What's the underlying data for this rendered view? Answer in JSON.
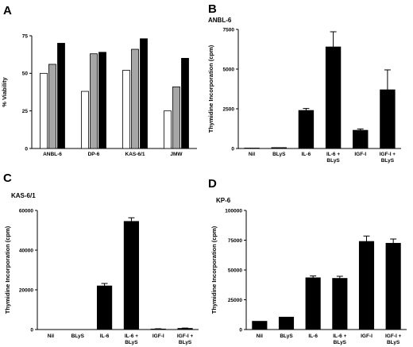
{
  "panels": {
    "A": {
      "letter": "A"
    },
    "B": {
      "letter": "B",
      "subtitle": "ANBL-6"
    },
    "C": {
      "letter": "C",
      "subtitle": "KAS-6/1"
    },
    "D": {
      "letter": "D",
      "subtitle": "KP-6"
    }
  },
  "chart_data": [
    {
      "panel": "A",
      "type": "bar",
      "ylabel": "% Viability",
      "ylim": [
        0,
        75
      ],
      "yticks": [
        0,
        25,
        50,
        75
      ],
      "categories": [
        "ANBL-6",
        "DP-6",
        "KAS-6/1",
        "JMW"
      ],
      "series_colors": [
        "#ffffff",
        "#a6a6a6",
        "#000000"
      ],
      "series": [
        {
          "values": [
            50,
            38,
            52,
            25
          ]
        },
        {
          "values": [
            56,
            63,
            66,
            41
          ]
        },
        {
          "values": [
            70,
            64,
            73,
            60
          ]
        }
      ]
    },
    {
      "panel": "B",
      "type": "bar",
      "ylabel": "Thymidine Incorporation (cpm)",
      "ylim": [
        0,
        7500
      ],
      "yticks": [
        0,
        2500,
        5000,
        7500
      ],
      "categories": [
        [
          "Nil"
        ],
        [
          "BLyS"
        ],
        [
          "IL-6"
        ],
        [
          "IL-6 +",
          "BLyS"
        ],
        [
          "IGF-I"
        ],
        [
          "IGF-I +",
          "BLyS"
        ]
      ],
      "values": [
        30,
        60,
        2400,
        6400,
        1150,
        3700
      ],
      "errors": [
        0,
        0,
        120,
        950,
        80,
        1250
      ]
    },
    {
      "panel": "C",
      "type": "bar",
      "ylabel": "Thymidine Incorporation (cpm)",
      "ylim": [
        0,
        60000
      ],
      "yticks": [
        0,
        20000,
        40000,
        60000
      ],
      "categories": [
        [
          "Nil"
        ],
        [
          "BLyS"
        ],
        [
          "IL-6"
        ],
        [
          "IL-6 +",
          "BLyS"
        ],
        [
          "IGF-I"
        ],
        [
          "IGF-I +",
          "BLyS"
        ]
      ],
      "values": [
        0,
        0,
        22000,
        54500,
        300,
        600
      ],
      "errors": [
        0,
        0,
        1200,
        1800,
        100,
        150
      ]
    },
    {
      "panel": "D",
      "type": "bar",
      "ylabel": "Thymidine Incorporation (cpm)",
      "ylim": [
        0,
        100000
      ],
      "yticks": [
        0,
        25000,
        50000,
        75000,
        100000
      ],
      "categories": [
        [
          "Nil"
        ],
        [
          "BLyS"
        ],
        [
          "IL-6"
        ],
        [
          "IL-6 +",
          "BLyS"
        ],
        [
          "IGF-I"
        ],
        [
          "IGF-I +",
          "BLyS"
        ]
      ],
      "values": [
        7000,
        10500,
        43500,
        43000,
        74000,
        72500
      ],
      "errors": [
        0,
        0,
        1500,
        1700,
        4500,
        3500
      ]
    }
  ]
}
